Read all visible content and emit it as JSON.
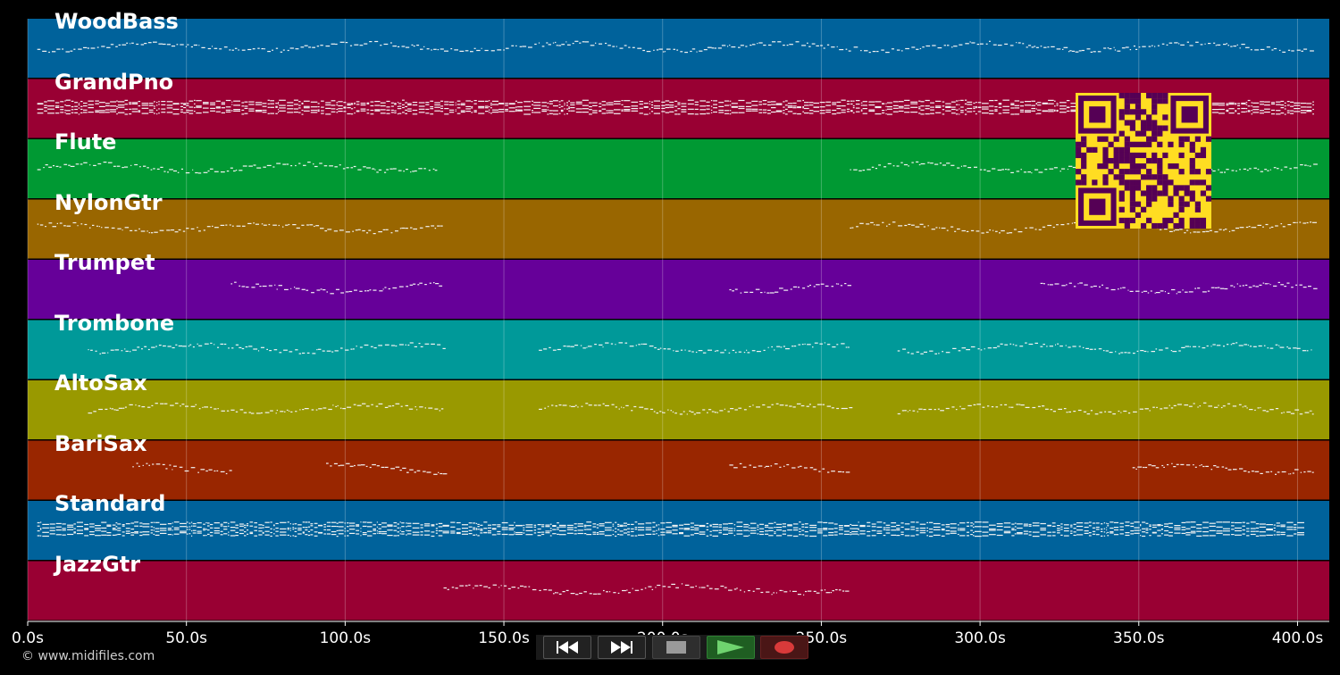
{
  "chart_data": {
    "type": "piano-roll",
    "xlim": [
      0,
      410
    ],
    "x_unit": "s",
    "x_ticks": [
      {
        "value": 0,
        "label": "0.0s"
      },
      {
        "value": 50,
        "label": "50.0s"
      },
      {
        "value": 100,
        "label": "100.0s"
      },
      {
        "value": 150,
        "label": "150.0s"
      },
      {
        "value": 200,
        "label": "200.0s"
      },
      {
        "value": 250,
        "label": "250.0s"
      },
      {
        "value": 300,
        "label": "300.0s"
      },
      {
        "value": 350,
        "label": "350.0s"
      },
      {
        "value": 400,
        "label": "400.0s"
      }
    ],
    "grid": true,
    "tracks": [
      {
        "name": "WoodBass",
        "color": "#00629b",
        "active": [
          [
            3,
            404
          ]
        ]
      },
      {
        "name": "GrandPno",
        "color": "#990033",
        "active": [
          [
            3,
            405
          ]
        ]
      },
      {
        "name": "Flute",
        "color": "#009933",
        "active": [
          [
            3,
            129
          ],
          [
            259,
            405
          ]
        ]
      },
      {
        "name": "NylonGtr",
        "color": "#996600",
        "active": [
          [
            3,
            131
          ],
          [
            259,
            405
          ]
        ]
      },
      {
        "name": "Trumpet",
        "color": "#660099",
        "active": [
          [
            64,
            131
          ],
          [
            221,
            259
          ],
          [
            319,
            405
          ]
        ]
      },
      {
        "name": "Trombone",
        "color": "#009999",
        "active": [
          [
            19,
            131
          ],
          [
            161,
            259
          ],
          [
            274,
            405
          ]
        ]
      },
      {
        "name": "AltoSax",
        "color": "#999900",
        "active": [
          [
            19,
            131
          ],
          [
            161,
            259
          ],
          [
            274,
            405
          ]
        ]
      },
      {
        "name": "BariSax",
        "color": "#992600",
        "active": [
          [
            33,
            64
          ],
          [
            94,
            131
          ],
          [
            221,
            259
          ],
          [
            348,
            405
          ]
        ]
      },
      {
        "name": "Standard",
        "color": "#00629b",
        "active": [
          [
            3,
            400
          ]
        ]
      },
      {
        "name": "JazzGtr",
        "color": "#990033",
        "active": [
          [
            131,
            259
          ]
        ]
      }
    ]
  },
  "footer": {
    "copyright": "© www.midifiles.com"
  },
  "playback": {
    "rewind_icon": "rewind-icon",
    "fast_forward_icon": "fast-forward-icon",
    "stop_icon": "stop-icon",
    "play_icon": "play-icon",
    "record_icon": "record-icon"
  },
  "qr": {
    "fg": "#550055",
    "bg": "#ffdd22"
  }
}
